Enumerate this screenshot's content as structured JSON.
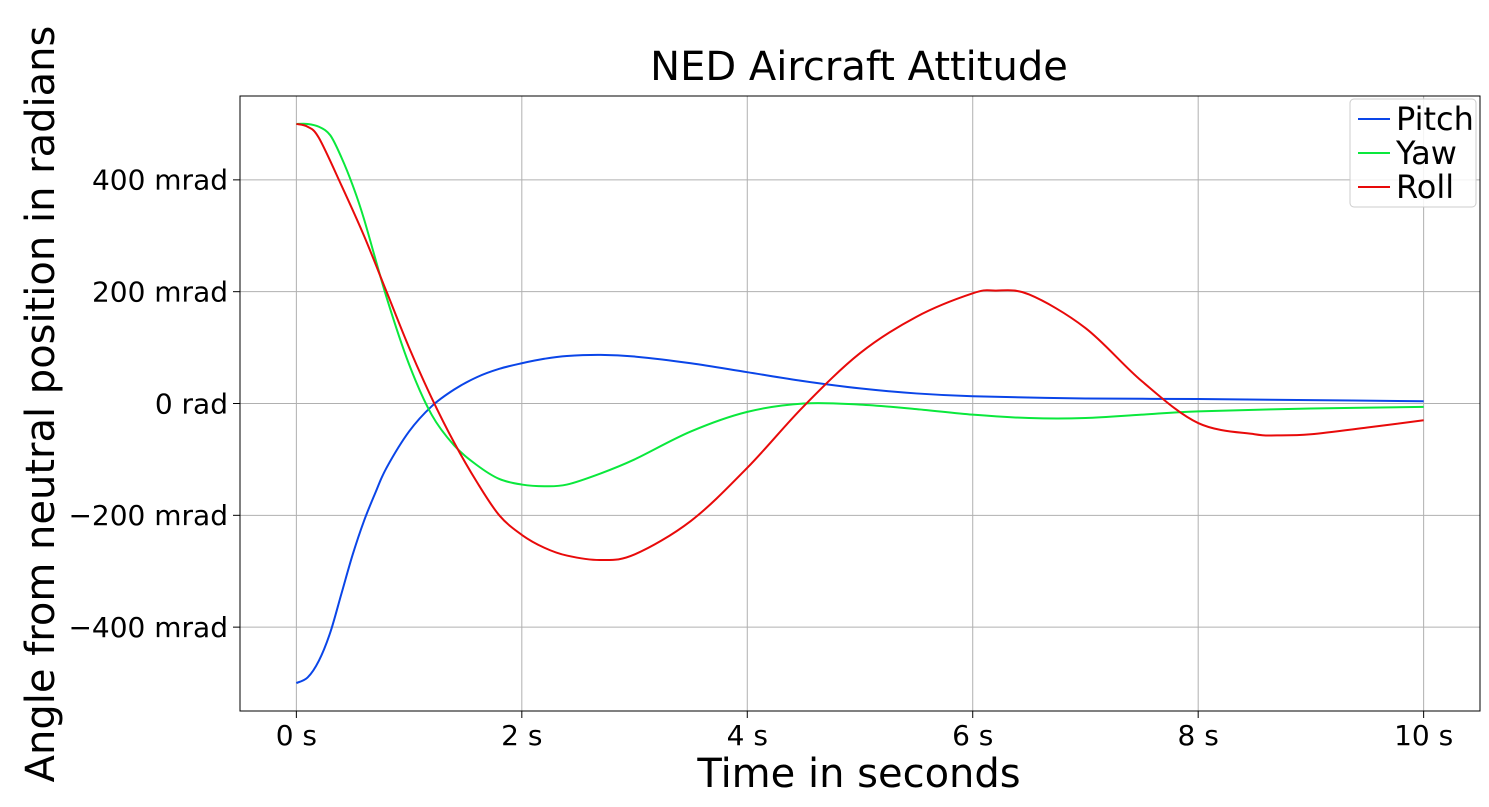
{
  "chart_data": {
    "type": "line",
    "title": "NED Aircraft Attitude",
    "xlabel": "Time in seconds",
    "ylabel": "Angle from neutral position in radians",
    "xlim": [
      -0.5,
      10.5
    ],
    "ylim": [
      -0.55,
      0.55
    ],
    "xticks": [
      {
        "value": 0,
        "label": "0 s"
      },
      {
        "value": 2,
        "label": "2 s"
      },
      {
        "value": 4,
        "label": "4 s"
      },
      {
        "value": 6,
        "label": "6 s"
      },
      {
        "value": 8,
        "label": "8 s"
      },
      {
        "value": 10,
        "label": "10 s"
      }
    ],
    "yticks": [
      {
        "value": -0.4,
        "label": "−400 mrad"
      },
      {
        "value": -0.2,
        "label": "−200 mrad"
      },
      {
        "value": 0,
        "label": "0 rad"
      },
      {
        "value": 0.2,
        "label": "200 mrad"
      },
      {
        "value": 0.4,
        "label": "400 mrad"
      }
    ],
    "grid": true,
    "legend_position": "top-right",
    "series": [
      {
        "name": "Pitch",
        "color": "#0a45e8",
        "x": [
          0,
          0.1,
          0.2,
          0.3,
          0.4,
          0.5,
          0.6,
          0.7,
          0.8,
          1.0,
          1.2,
          1.4,
          1.6,
          1.8,
          2.0,
          2.2,
          2.4,
          2.7,
          3.0,
          3.5,
          4.0,
          4.5,
          5.0,
          5.5,
          6.0,
          7.0,
          8.0,
          9.0,
          10.0
        ],
        "y": [
          -0.5,
          -0.49,
          -0.46,
          -0.41,
          -0.34,
          -0.27,
          -0.21,
          -0.16,
          -0.115,
          -0.05,
          -0.005,
          0.025,
          0.047,
          0.062,
          0.072,
          0.08,
          0.085,
          0.087,
          0.084,
          0.072,
          0.056,
          0.04,
          0.027,
          0.018,
          0.013,
          0.009,
          0.008,
          0.006,
          0.004
        ]
      },
      {
        "name": "Yaw",
        "color": "#0ae83c",
        "x": [
          0,
          0.1,
          0.2,
          0.3,
          0.4,
          0.5,
          0.6,
          0.8,
          1.0,
          1.2,
          1.4,
          1.6,
          1.8,
          2.0,
          2.2,
          2.4,
          2.7,
          3.0,
          3.5,
          4.0,
          4.5,
          5.0,
          5.5,
          6.0,
          6.5,
          7.0,
          7.5,
          8.0,
          9.0,
          10.0
        ],
        "y": [
          0.5,
          0.5,
          0.495,
          0.48,
          0.44,
          0.39,
          0.33,
          0.19,
          0.07,
          -0.02,
          -0.075,
          -0.11,
          -0.135,
          -0.145,
          -0.148,
          -0.145,
          -0.125,
          -0.1,
          -0.05,
          -0.015,
          0.0,
          -0.002,
          -0.01,
          -0.02,
          -0.026,
          -0.026,
          -0.02,
          -0.014,
          -0.009,
          -0.006
        ]
      },
      {
        "name": "Roll",
        "color": "#e80a0a",
        "x": [
          0,
          0.1,
          0.2,
          0.4,
          0.6,
          0.8,
          1.0,
          1.2,
          1.4,
          1.6,
          1.8,
          2.0,
          2.2,
          2.4,
          2.7,
          3.0,
          3.5,
          4.0,
          4.5,
          5.0,
          5.5,
          6.0,
          6.2,
          6.5,
          7.0,
          7.5,
          8.0,
          8.5,
          8.7,
          9.0,
          9.5,
          10.0
        ],
        "y": [
          0.5,
          0.495,
          0.475,
          0.39,
          0.3,
          0.2,
          0.1,
          0.01,
          -0.07,
          -0.14,
          -0.2,
          -0.235,
          -0.258,
          -0.272,
          -0.28,
          -0.27,
          -0.21,
          -0.115,
          -0.005,
          0.09,
          0.155,
          0.197,
          0.202,
          0.195,
          0.135,
          0.04,
          -0.035,
          -0.055,
          -0.057,
          -0.055,
          -0.043,
          -0.03
        ]
      }
    ]
  }
}
